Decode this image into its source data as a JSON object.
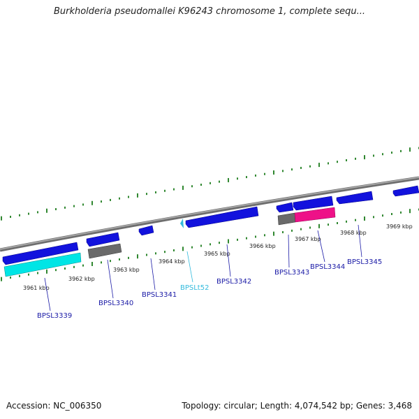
{
  "title": "Burkholderia pseudomallei K96243 chromosome 1, complete sequ...",
  "footer": {
    "accession": "Accession: NC_006350",
    "summary": "Topology: circular; Length: 4,074,542 bp; Genes: 3,468"
  },
  "colors": {
    "gene": "#1212dd",
    "cds": "#00e5e5",
    "pseudo": "#777777",
    "misc": "#ee1188",
    "trna": "#33bbdd",
    "tick": "#1a7a1a",
    "backbone": "#888888"
  },
  "ticks": [
    {
      "label": "3961 kbp"
    },
    {
      "label": "3962 kbp"
    },
    {
      "label": "3963 kbp"
    },
    {
      "label": "3964 kbp"
    },
    {
      "label": "3965 kbp"
    },
    {
      "label": "3966 kbp"
    },
    {
      "label": "3967 kbp"
    },
    {
      "label": "3968 kbp"
    },
    {
      "label": "3969 kbp"
    }
  ],
  "genes": [
    {
      "label": "BPSL3339"
    },
    {
      "label": "BPSL3340"
    },
    {
      "label": "BPSL3341"
    },
    {
      "label": "BPSLt52"
    },
    {
      "label": "BPSL3342"
    },
    {
      "label": "BPSL3343"
    },
    {
      "label": "BPSL3344"
    },
    {
      "label": "BPSL3345"
    }
  ]
}
